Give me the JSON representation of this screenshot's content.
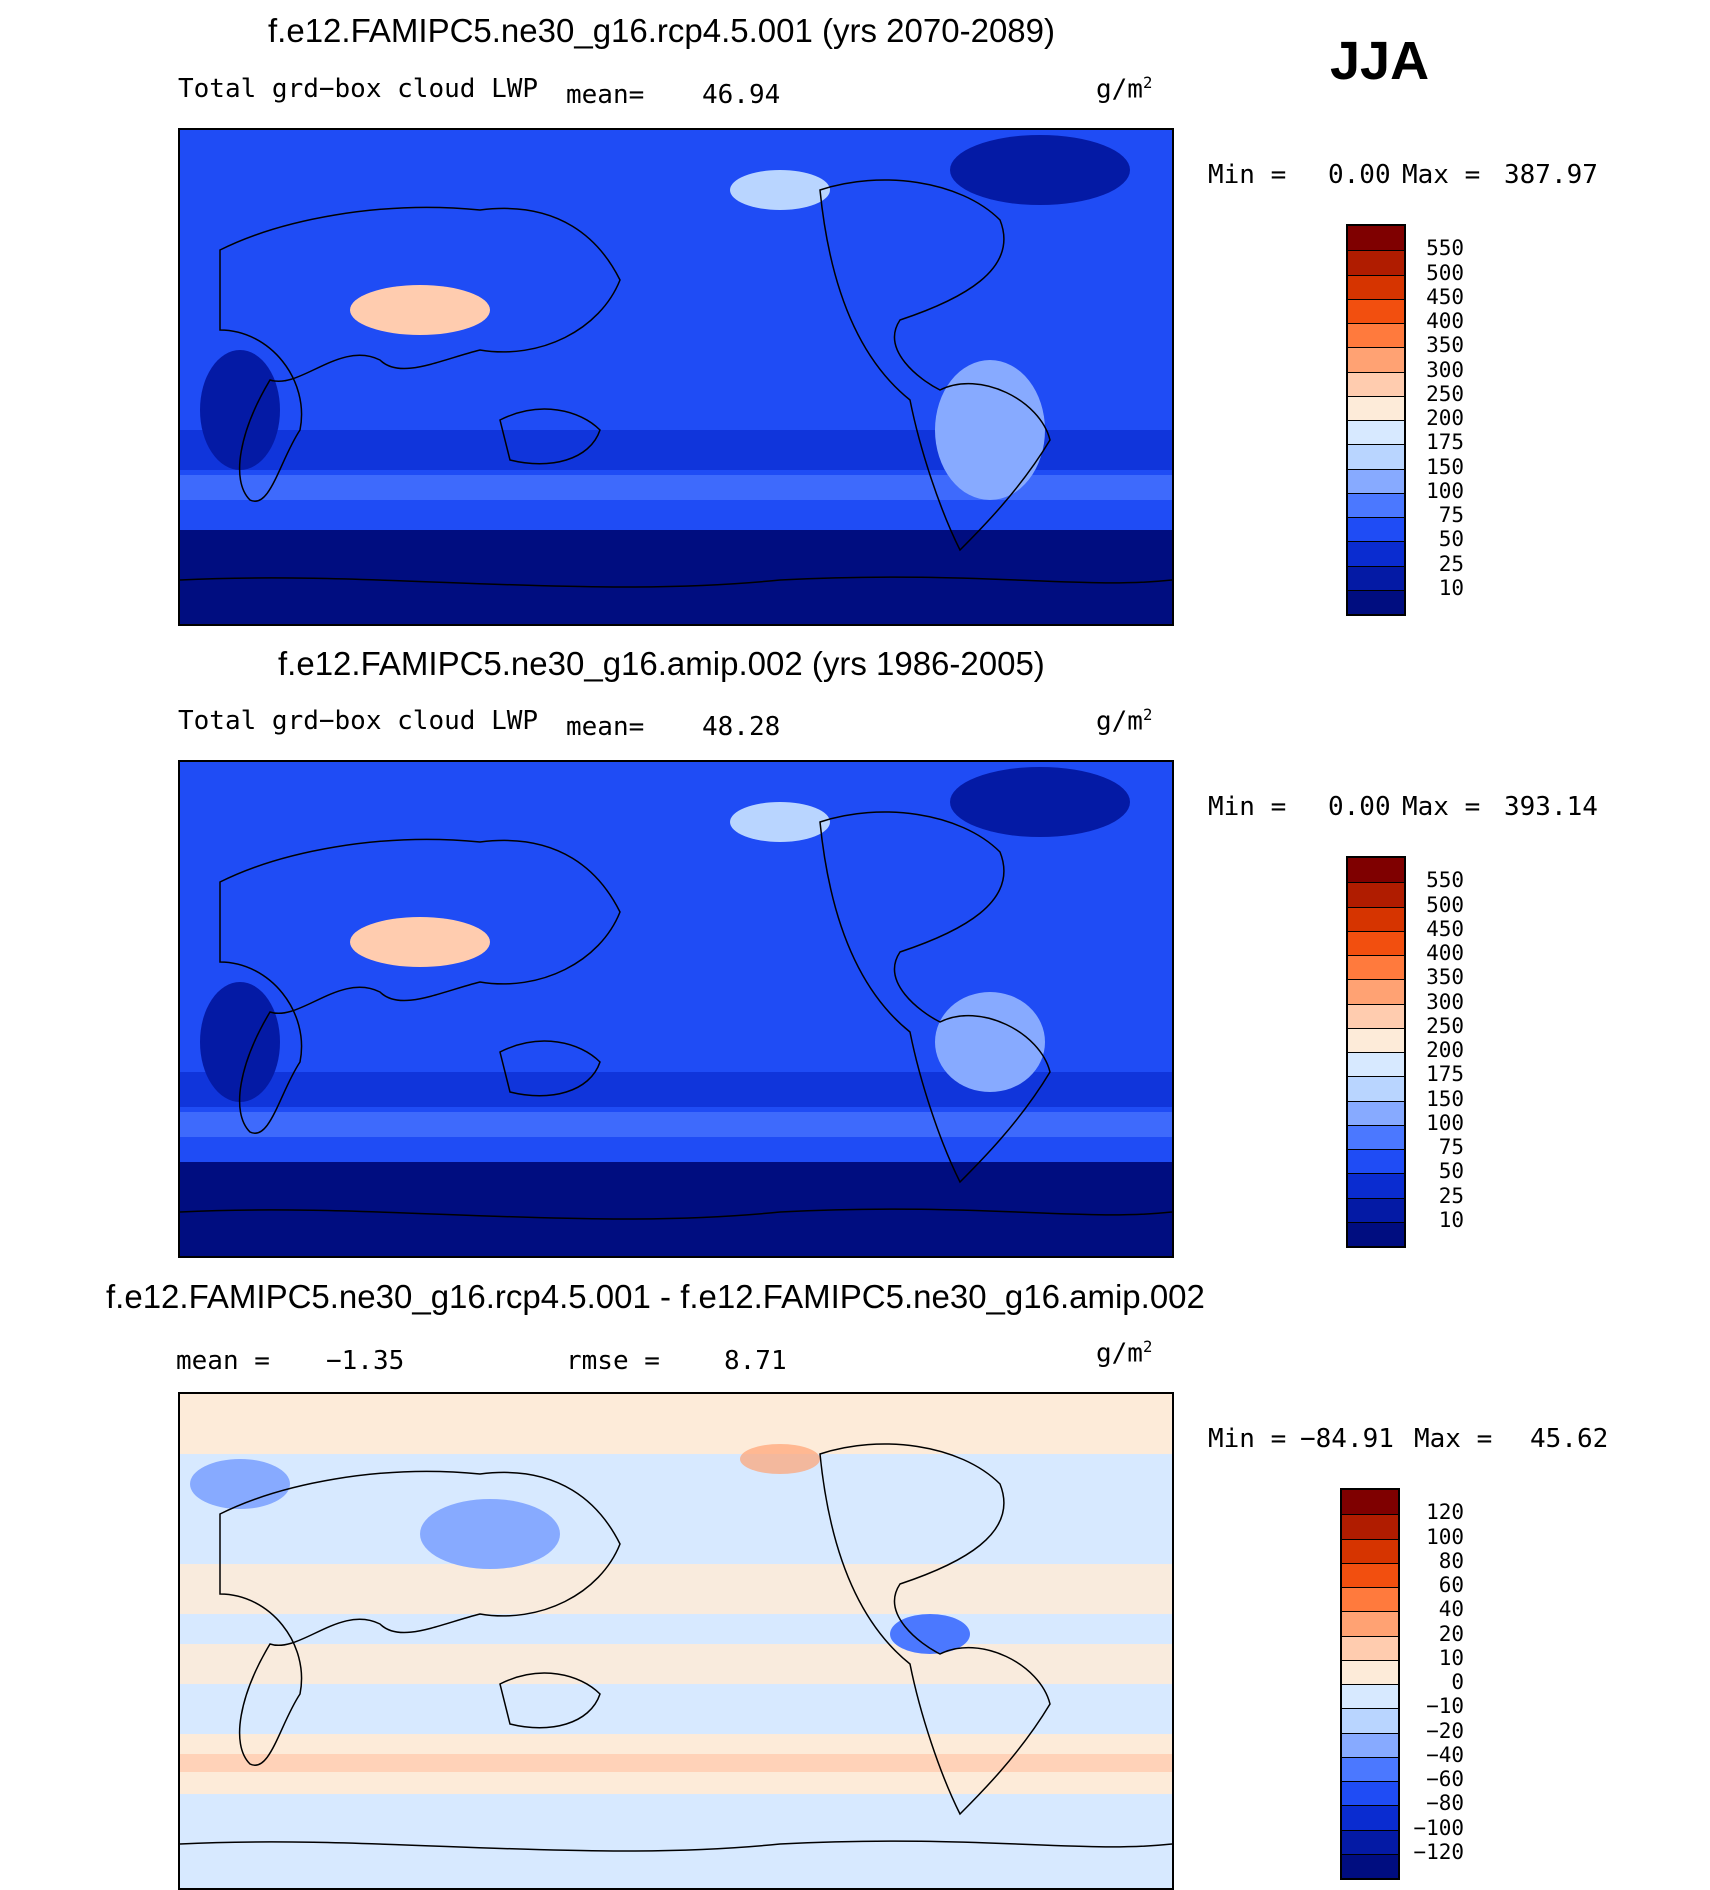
{
  "season": "JJA",
  "units_main": "g/m",
  "units_exp": "2",
  "panels": [
    {
      "title": "f.e12.FAMIPC5.ne30_g16.rcp4.5.001 (yrs 2070-2089)",
      "variable": "Total grd−box cloud LWP",
      "mean_label": "mean=",
      "mean_value": "46.94",
      "min_label": "Min =",
      "min_value": "0.00",
      "max_label": "Max =",
      "max_value": "387.97",
      "colorbar_labels": [
        "550",
        "500",
        "450",
        "400",
        "350",
        "300",
        "250",
        "200",
        "175",
        "150",
        "100",
        "75",
        "50",
        "25",
        "10"
      ],
      "colors": [
        "#7f0000",
        "#b01c00",
        "#d63400",
        "#f24f0f",
        "#ff7a3d",
        "#ffa273",
        "#ffccaf",
        "#fdebd9",
        "#d7e9ff",
        "#b9d5ff",
        "#87aaff",
        "#4b78ff",
        "#1f4cf5",
        "#0a2cd0",
        "#041aa5",
        "#000d80"
      ]
    },
    {
      "title": "f.e12.FAMIPC5.ne30_g16.amip.002 (yrs 1986-2005)",
      "variable": "Total grd−box cloud LWP",
      "mean_label": "mean=",
      "mean_value": "48.28",
      "min_label": "Min =",
      "min_value": "0.00",
      "max_label": "Max =",
      "max_value": "393.14",
      "colorbar_labels": [
        "550",
        "500",
        "450",
        "400",
        "350",
        "300",
        "250",
        "200",
        "175",
        "150",
        "100",
        "75",
        "50",
        "25",
        "10"
      ],
      "colors": [
        "#7f0000",
        "#b01c00",
        "#d63400",
        "#f24f0f",
        "#ff7a3d",
        "#ffa273",
        "#ffccaf",
        "#fdebd9",
        "#d7e9ff",
        "#b9d5ff",
        "#87aaff",
        "#4b78ff",
        "#1f4cf5",
        "#0a2cd0",
        "#041aa5",
        "#000d80"
      ]
    },
    {
      "title": "f.e12.FAMIPC5.ne30_g16.rcp4.5.001 - f.e12.FAMIPC5.ne30_g16.amip.002",
      "mean_label": "mean =",
      "mean_value": "−1.35",
      "rmse_label": "rmse =",
      "rmse_value": "8.71",
      "min_label": "Min =",
      "min_value": "−84.91",
      "max_label": "Max =",
      "max_value": "45.62",
      "colorbar_labels": [
        "120",
        "100",
        "80",
        "60",
        "40",
        "20",
        "10",
        "0",
        "−10",
        "−20",
        "−40",
        "−60",
        "−80",
        "−100",
        "−120"
      ],
      "colors": [
        "#7f0000",
        "#b01c00",
        "#d63400",
        "#f24f0f",
        "#ff7a3d",
        "#ffa273",
        "#ffccaf",
        "#fdebd9",
        "#d7e9ff",
        "#b9d5ff",
        "#87aaff",
        "#4b78ff",
        "#1f4cf5",
        "#0a2cd0",
        "#041aa5",
        "#000d80"
      ]
    }
  ]
}
